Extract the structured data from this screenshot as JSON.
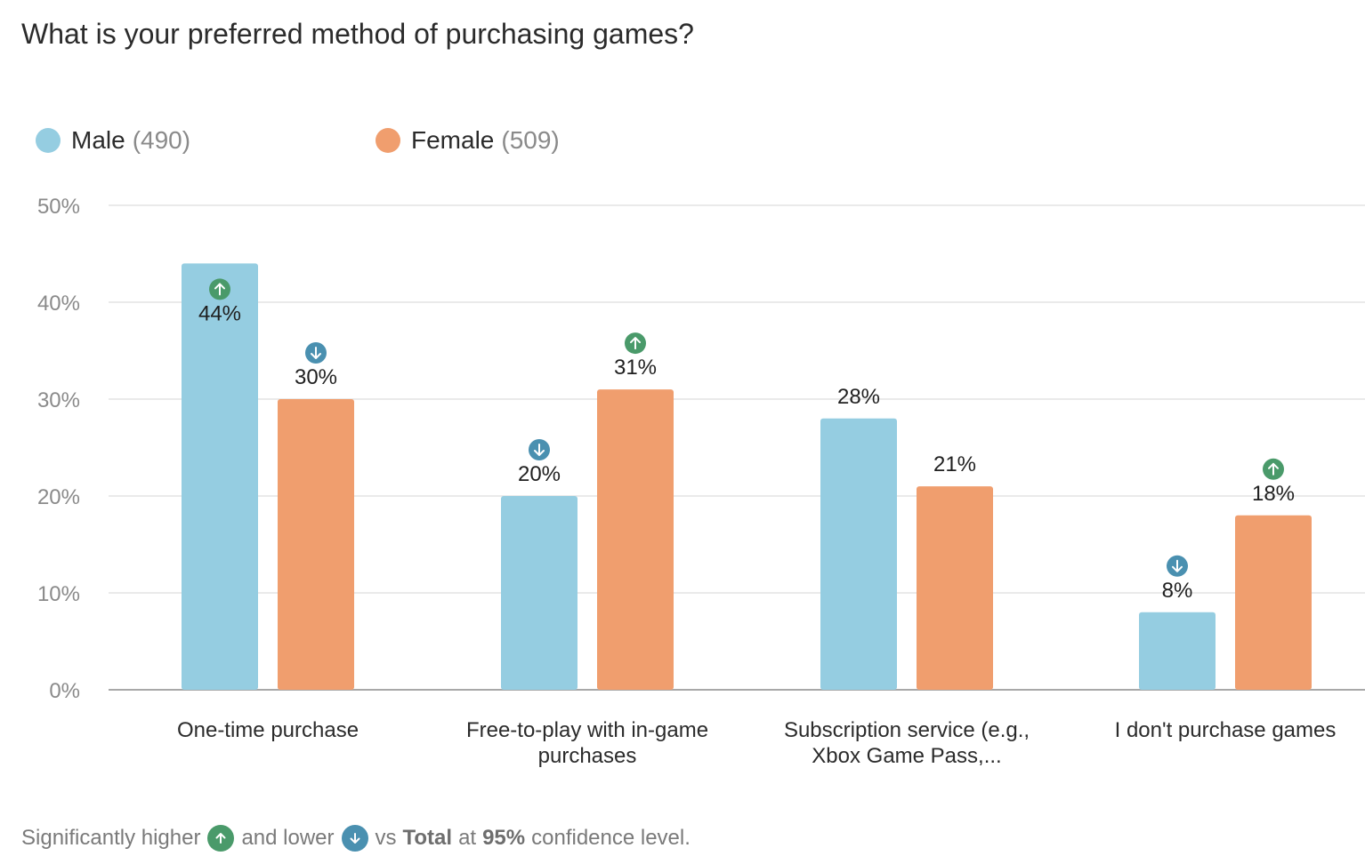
{
  "title": "What is your preferred method of purchasing games?",
  "legend": [
    {
      "label": "Male",
      "count": "(490)",
      "color": "#95CDE1"
    },
    {
      "label": "Female",
      "count": "(509)",
      "color": "#F09E6E"
    }
  ],
  "colors": {
    "male": "#95CDE1",
    "female": "#F09E6E",
    "higher": "#4A9A6A",
    "lower": "#4A90B0"
  },
  "footnote": {
    "part1": "Significantly higher",
    "part2": "and lower",
    "part3": "vs",
    "bold1": "Total",
    "part4": "at",
    "bold2": "95%",
    "part5": "confidence level.",
    "higher_icon": "arrow-up-icon",
    "lower_icon": "arrow-down-icon"
  },
  "chart_data": {
    "type": "bar",
    "title": "What is your preferred method of purchasing games?",
    "categories": [
      [
        "One-time purchase"
      ],
      [
        "Free-to-play with in-game",
        "purchases"
      ],
      [
        "Subscription service (e.g.,",
        "Xbox Game Pass,..."
      ],
      [
        "I don't purchase games"
      ]
    ],
    "series": [
      {
        "name": "Male",
        "values": [
          44,
          20,
          28,
          8
        ],
        "labels": [
          "44%",
          "20%",
          "28%",
          "8%"
        ],
        "significance": [
          "up",
          "down",
          "",
          "down"
        ]
      },
      {
        "name": "Female",
        "values": [
          30,
          31,
          21,
          18
        ],
        "labels": [
          "30%",
          "31%",
          "21%",
          "18%"
        ],
        "significance": [
          "down",
          "up",
          "",
          "up"
        ]
      }
    ],
    "ylim": [
      0,
      50
    ],
    "yticks": [
      "0%",
      "10%",
      "20%",
      "30%",
      "40%",
      "50%"
    ],
    "grid": true,
    "legend_position": "top-left"
  }
}
